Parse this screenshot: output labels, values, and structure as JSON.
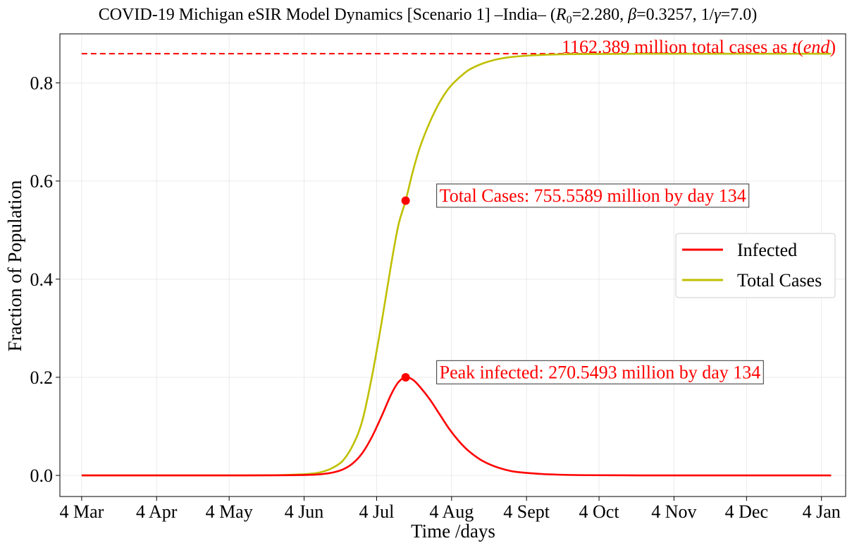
{
  "chart_data": {
    "type": "line",
    "title": "COVID-19 Michigan eSIR Model Dynamics [Scenario 1] –India– (R0=2.280, β=0.3257, 1/γ=7.0)",
    "title_parts": {
      "prefix": "COVID-19 Michigan eSIR Model Dynamics [Scenario 1] –India– (",
      "r_symbol": "R",
      "r_sub": "0",
      "r_value": "=2.280, ",
      "beta_symbol": "β",
      "beta_value": "=0.3257, 1/",
      "gamma_symbol": "γ",
      "gamma_value": "=7.0)"
    },
    "xlabel": "Time /days",
    "ylabel": "Fraction of Population",
    "xlim": [
      -9,
      316
    ],
    "ylim": [
      -0.043,
      0.9
    ],
    "grid": true,
    "x_ticks": [
      {
        "value": 0,
        "label": "4 Mar"
      },
      {
        "value": 31,
        "label": "4 Apr"
      },
      {
        "value": 61,
        "label": "4 May"
      },
      {
        "value": 92,
        "label": "4 Jun"
      },
      {
        "value": 122,
        "label": "4 Jul"
      },
      {
        "value": 153,
        "label": "4 Aug"
      },
      {
        "value": 184,
        "label": "4 Sept"
      },
      {
        "value": 214,
        "label": "4 Oct"
      },
      {
        "value": 245,
        "label": "4 Nov"
      },
      {
        "value": 275,
        "label": "4 Dec"
      },
      {
        "value": 306,
        "label": "4 Jan"
      }
    ],
    "y_ticks": [
      {
        "value": 0.0,
        "label": "0.0"
      },
      {
        "value": 0.2,
        "label": "0.2"
      },
      {
        "value": 0.4,
        "label": "0.4"
      },
      {
        "value": 0.6,
        "label": "0.6"
      },
      {
        "value": 0.8,
        "label": "0.8"
      }
    ],
    "series": [
      {
        "name": "Infected",
        "color": "#ff0000",
        "x": [
          0,
          20,
          40,
          60,
          80,
          90,
          96,
          100,
          104,
          108,
          112,
          116,
          120,
          124,
          128,
          131,
          134,
          137,
          140,
          144,
          148,
          152,
          156,
          160,
          165,
          170,
          175,
          180,
          190,
          200,
          210,
          230,
          260,
          290,
          310
        ],
        "y": [
          0.0,
          0.0,
          0.0,
          0.0,
          0.0002,
          0.0007,
          0.0015,
          0.003,
          0.006,
          0.012,
          0.024,
          0.045,
          0.078,
          0.12,
          0.165,
          0.19,
          0.2,
          0.195,
          0.18,
          0.155,
          0.125,
          0.095,
          0.07,
          0.05,
          0.032,
          0.02,
          0.012,
          0.007,
          0.003,
          0.0012,
          0.0005,
          0.0001,
          0.0,
          0.0,
          0.0
        ]
      },
      {
        "name": "Total Cases",
        "color": "#bfbf00",
        "x": [
          0,
          20,
          40,
          60,
          80,
          90,
          96,
          100,
          104,
          108,
          112,
          116,
          120,
          124,
          128,
          131,
          134,
          137,
          140,
          144,
          148,
          152,
          156,
          160,
          165,
          170,
          175,
          180,
          190,
          200,
          210,
          230,
          260,
          290,
          310
        ],
        "y": [
          0.0,
          0.0,
          0.0,
          0.0,
          0.0005,
          0.002,
          0.004,
          0.008,
          0.016,
          0.03,
          0.06,
          0.11,
          0.2,
          0.31,
          0.43,
          0.51,
          0.56,
          0.62,
          0.67,
          0.72,
          0.76,
          0.79,
          0.81,
          0.826,
          0.838,
          0.846,
          0.851,
          0.854,
          0.857,
          0.8585,
          0.859,
          0.8594,
          0.8595,
          0.8595,
          0.8595
        ]
      }
    ],
    "reference_line": {
      "y": 0.8595,
      "x": [
        0,
        310
      ],
      "color": "#ff0000",
      "style": "dashed",
      "label_prefix": "1162.389 million total cases as ",
      "label_t": "t",
      "label_paren_open": "(",
      "label_end": "end",
      "label_paren_close": ")"
    },
    "markers": [
      {
        "name": "peak-infected",
        "x": 134,
        "y": 0.2,
        "color": "#ff0000"
      },
      {
        "name": "total-cases-at-peak",
        "x": 134,
        "y": 0.56,
        "color": "#ff0000"
      }
    ],
    "annotations": [
      {
        "name": "total-cases-annotation",
        "text": "Total Cases: 755.5589 million by day 134",
        "x": 148,
        "y": 0.571,
        "color": "#ff0000"
      },
      {
        "name": "peak-infected-annotation",
        "text": "Peak infected: 270.5493 million by day 134",
        "x": 148,
        "y": 0.211,
        "color": "#ff0000"
      }
    ],
    "legend": {
      "position": "center-right",
      "entries": [
        {
          "label": "Infected",
          "color": "#ff0000"
        },
        {
          "label": "Total Cases",
          "color": "#bfbf00"
        }
      ]
    }
  }
}
